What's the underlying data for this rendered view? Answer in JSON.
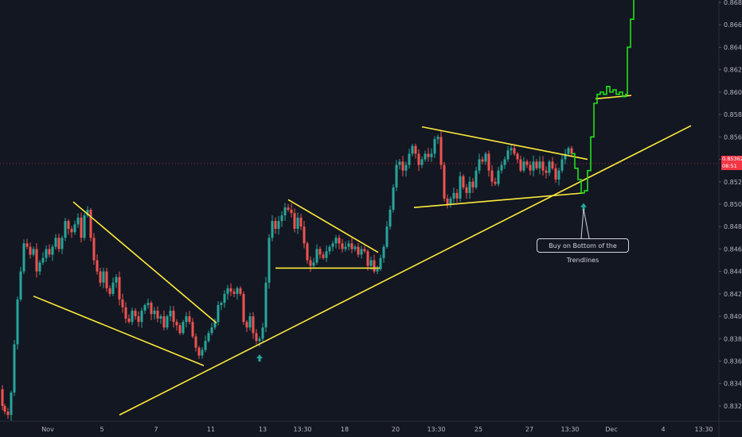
{
  "chart_data": {
    "type": "candlestick",
    "y_axis": {
      "position": "right",
      "ticks": [
        "0.86800",
        "0.86600",
        "0.86400",
        "0.86200",
        "0.86000",
        "0.85800",
        "0.85600",
        "0.85400",
        "0.85200",
        "0.85000",
        "0.84800",
        "0.84600",
        "0.84400",
        "0.84200",
        "0.84000",
        "0.83800",
        "0.83600",
        "0.83400",
        "0.83200"
      ],
      "ylim": [
        0.8312,
        0.8689
      ]
    },
    "x_axis": {
      "ticks": [
        "Nov",
        "5",
        "7",
        "11",
        "13",
        "13:30",
        "18",
        "20",
        "13:30",
        "25",
        "27",
        "13:30",
        "Dec",
        "4",
        "13:30"
      ]
    },
    "current_price": {
      "value": "0.85362",
      "countdown": "08:51"
    },
    "annotation": {
      "text": "Buy on Bottom of the Trendlines"
    },
    "colors": {
      "background": "#131722",
      "up": "#26a69a",
      "down": "#ef5350",
      "trendline": "#ffeb3b",
      "projection": "#22e01c",
      "marker": "#26a69a"
    },
    "price_path": [
      [
        0,
        0.8335
      ],
      [
        3,
        0.832
      ],
      [
        6,
        0.8315
      ],
      [
        10,
        0.8312
      ],
      [
        14,
        0.8332
      ],
      [
        18,
        0.8375
      ],
      [
        22,
        0.8415
      ],
      [
        26,
        0.844
      ],
      [
        30,
        0.8465
      ],
      [
        34,
        0.8462
      ],
      [
        38,
        0.8455
      ],
      [
        42,
        0.846
      ],
      [
        46,
        0.844
      ],
      [
        50,
        0.8448
      ],
      [
        54,
        0.8452
      ],
      [
        58,
        0.846
      ],
      [
        62,
        0.8455
      ],
      [
        66,
        0.8462
      ],
      [
        70,
        0.847
      ],
      [
        74,
        0.846
      ],
      [
        78,
        0.847
      ],
      [
        82,
        0.8485
      ],
      [
        86,
        0.8478
      ],
      [
        90,
        0.8475
      ],
      [
        94,
        0.8482
      ],
      [
        98,
        0.8488
      ],
      [
        102,
        0.847
      ],
      [
        106,
        0.849
      ],
      [
        110,
        0.8495
      ],
      [
        114,
        0.847
      ],
      [
        118,
        0.845
      ],
      [
        122,
        0.844
      ],
      [
        126,
        0.843
      ],
      [
        130,
        0.844
      ],
      [
        134,
        0.8425
      ],
      [
        138,
        0.842
      ],
      [
        142,
        0.843
      ],
      [
        146,
        0.8435
      ],
      [
        150,
        0.8415
      ],
      [
        154,
        0.8408
      ],
      [
        158,
        0.8398
      ],
      [
        162,
        0.8395
      ],
      [
        166,
        0.8405
      ],
      [
        170,
        0.84
      ],
      [
        174,
        0.8395
      ],
      [
        178,
        0.8405
      ],
      [
        182,
        0.841
      ],
      [
        186,
        0.8412
      ],
      [
        190,
        0.8402
      ],
      [
        194,
        0.8405
      ],
      [
        198,
        0.8398
      ],
      [
        202,
        0.84
      ],
      [
        206,
        0.839
      ],
      [
        210,
        0.84
      ],
      [
        214,
        0.8405
      ],
      [
        218,
        0.8395
      ],
      [
        222,
        0.8392
      ],
      [
        226,
        0.8385
      ],
      [
        230,
        0.8395
      ],
      [
        234,
        0.84
      ],
      [
        238,
        0.8395
      ],
      [
        242,
        0.8382
      ],
      [
        246,
        0.8372
      ],
      [
        250,
        0.8365
      ],
      [
        254,
        0.837
      ],
      [
        258,
        0.8378
      ],
      [
        262,
        0.8385
      ],
      [
        266,
        0.839
      ],
      [
        270,
        0.8395
      ],
      [
        274,
        0.841
      ],
      [
        278,
        0.8412
      ],
      [
        282,
        0.842
      ],
      [
        286,
        0.8425
      ],
      [
        290,
        0.8422
      ],
      [
        294,
        0.842
      ],
      [
        298,
        0.8425
      ],
      [
        302,
        0.842
      ],
      [
        306,
        0.8395
      ],
      [
        310,
        0.839
      ],
      [
        314,
        0.84
      ],
      [
        318,
        0.8385
      ],
      [
        322,
        0.8378
      ],
      [
        326,
        0.838
      ],
      [
        330,
        0.839
      ],
      [
        334,
        0.843
      ],
      [
        338,
        0.847
      ],
      [
        342,
        0.8485
      ],
      [
        346,
        0.8478
      ],
      [
        350,
        0.8485
      ],
      [
        354,
        0.849
      ],
      [
        358,
        0.8497
      ],
      [
        362,
        0.8495
      ],
      [
        366,
        0.8492
      ],
      [
        370,
        0.8478
      ],
      [
        374,
        0.8488
      ],
      [
        378,
        0.848
      ],
      [
        382,
        0.8465
      ],
      [
        386,
        0.845
      ],
      [
        390,
        0.8445
      ],
      [
        394,
        0.8448
      ],
      [
        398,
        0.846
      ],
      [
        402,
        0.8455
      ],
      [
        406,
        0.8452
      ],
      [
        410,
        0.8458
      ],
      [
        414,
        0.8462
      ],
      [
        418,
        0.8465
      ],
      [
        422,
        0.847
      ],
      [
        426,
        0.8465
      ],
      [
        430,
        0.846
      ],
      [
        434,
        0.8462
      ],
      [
        438,
        0.8465
      ],
      [
        442,
        0.846
      ],
      [
        446,
        0.8462
      ],
      [
        450,
        0.8455
      ],
      [
        454,
        0.846
      ],
      [
        458,
        0.8458
      ],
      [
        462,
        0.8445
      ],
      [
        466,
        0.845
      ],
      [
        470,
        0.844
      ],
      [
        474,
        0.8442
      ],
      [
        478,
        0.8452
      ],
      [
        482,
        0.8462
      ],
      [
        486,
        0.848
      ],
      [
        490,
        0.8495
      ],
      [
        494,
        0.8515
      ],
      [
        498,
        0.8535
      ],
      [
        502,
        0.8538
      ],
      [
        506,
        0.853
      ],
      [
        510,
        0.8535
      ],
      [
        514,
        0.8545
      ],
      [
        518,
        0.8552
      ],
      [
        522,
        0.8545
      ],
      [
        526,
        0.8535
      ],
      [
        530,
        0.854
      ],
      [
        534,
        0.8545
      ],
      [
        538,
        0.8542
      ],
      [
        542,
        0.8545
      ],
      [
        546,
        0.8558
      ],
      [
        550,
        0.856
      ],
      [
        554,
        0.8535
      ],
      [
        558,
        0.8505
      ],
      [
        562,
        0.85
      ],
      [
        566,
        0.8505
      ],
      [
        570,
        0.851
      ],
      [
        574,
        0.8505
      ],
      [
        578,
        0.8525
      ],
      [
        582,
        0.8515
      ],
      [
        586,
        0.851
      ],
      [
        590,
        0.852
      ],
      [
        594,
        0.8515
      ],
      [
        598,
        0.853
      ],
      [
        602,
        0.854
      ],
      [
        606,
        0.8538
      ],
      [
        610,
        0.8545
      ],
      [
        614,
        0.853
      ],
      [
        618,
        0.852
      ],
      [
        622,
        0.8518
      ],
      [
        626,
        0.853
      ],
      [
        630,
        0.8535
      ],
      [
        634,
        0.854
      ],
      [
        638,
        0.8548
      ],
      [
        642,
        0.855
      ],
      [
        646,
        0.8545
      ],
      [
        650,
        0.854
      ],
      [
        654,
        0.853
      ],
      [
        658,
        0.8538
      ],
      [
        662,
        0.8535
      ],
      [
        666,
        0.853
      ],
      [
        670,
        0.8538
      ],
      [
        674,
        0.8532
      ],
      [
        678,
        0.8538
      ],
      [
        682,
        0.853
      ],
      [
        686,
        0.8528
      ],
      [
        690,
        0.8538
      ],
      [
        694,
        0.8532
      ],
      [
        698,
        0.8522
      ],
      [
        702,
        0.853
      ],
      [
        706,
        0.854
      ],
      [
        710,
        0.8545
      ],
      [
        714,
        0.855
      ],
      [
        718,
        0.8545
      ]
    ],
    "projection_path": [
      [
        718,
        0.8545
      ],
      [
        722,
        0.8532
      ],
      [
        726,
        0.8522
      ],
      [
        730,
        0.851
      ],
      [
        734,
        0.8512
      ],
      [
        738,
        0.853
      ],
      [
        742,
        0.856
      ],
      [
        746,
        0.859
      ],
      [
        750,
        0.8598
      ],
      [
        754,
        0.86
      ],
      [
        758,
        0.8598
      ],
      [
        762,
        0.8605
      ],
      [
        766,
        0.86
      ],
      [
        770,
        0.8602
      ],
      [
        774,
        0.8598
      ],
      [
        778,
        0.86
      ],
      [
        782,
        0.8596
      ],
      [
        786,
        0.8598
      ],
      [
        788,
        0.864
      ],
      [
        792,
        0.8665
      ],
      [
        796,
        0.869
      ]
    ],
    "trendlines": [
      {
        "name": "main-ascending",
        "points": [
          [
            150,
            0.8312
          ],
          [
            868,
            0.857
          ]
        ]
      },
      {
        "name": "wedge1-upper",
        "points": [
          [
            92,
            0.8502
          ],
          [
            272,
            0.8394
          ]
        ]
      },
      {
        "name": "wedge1-lower",
        "points": [
          [
            42,
            0.8418
          ],
          [
            256,
            0.8356
          ]
        ]
      },
      {
        "name": "triangle2-upper",
        "points": [
          [
            362,
            0.8504
          ],
          [
            475,
            0.8457
          ]
        ]
      },
      {
        "name": "triangle2-lower",
        "points": [
          [
            346,
            0.8443
          ],
          [
            477,
            0.8443
          ]
        ]
      },
      {
        "name": "triangle3-upper",
        "points": [
          [
            530,
            0.8569
          ],
          [
            738,
            0.854
          ]
        ]
      },
      {
        "name": "triangle3-lower",
        "points": [
          [
            520,
            0.8497
          ],
          [
            733,
            0.851
          ]
        ]
      },
      {
        "name": "flag-support",
        "points": [
          [
            748,
            0.8594
          ],
          [
            793,
            0.8597
          ]
        ]
      }
    ],
    "markers": [
      {
        "name": "buy-arrow-1",
        "x": 326,
        "y": 0.8366
      },
      {
        "name": "buy-arrow-2",
        "x": 733,
        "y": 0.8501
      }
    ]
  }
}
